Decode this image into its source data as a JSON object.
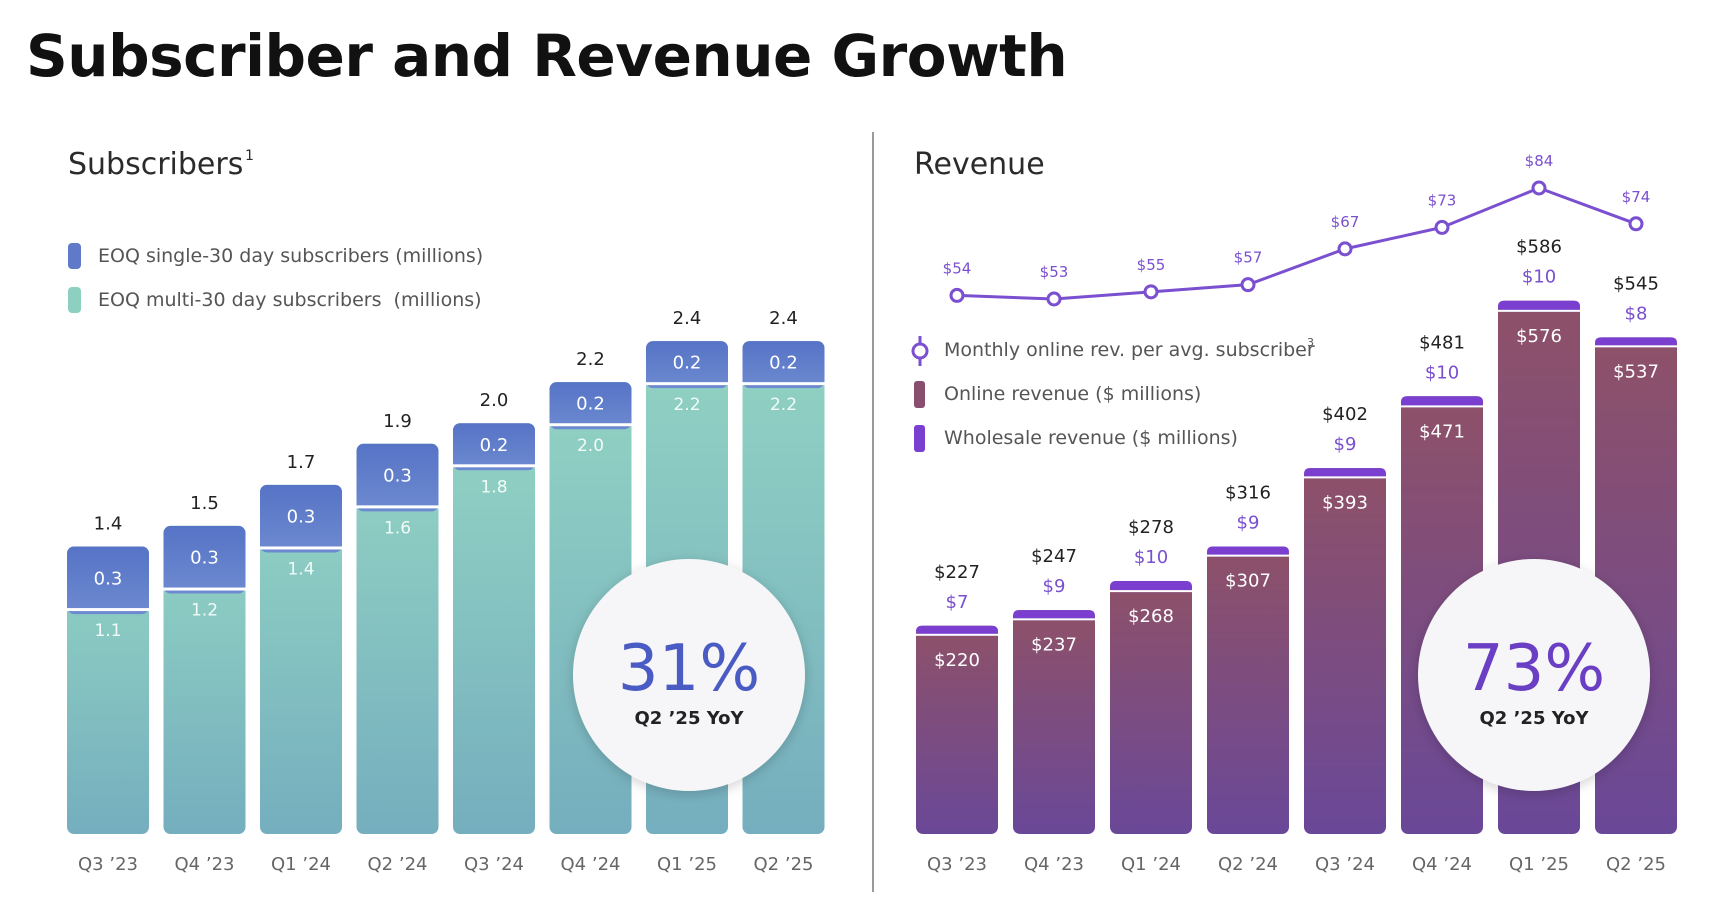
{
  "title": "Subscriber and Revenue Growth",
  "chart_data": [
    {
      "type": "bar",
      "stacked": true,
      "title": "Subscribers",
      "title_superscript": "1",
      "categories": [
        "Q3 ’23",
        "Q4 ’23",
        "Q1 ’24",
        "Q2 ’24",
        "Q3 ’24",
        "Q4 ’24",
        "Q1 ’25",
        "Q2 ’25"
      ],
      "series": [
        {
          "name": "EOQ multi-30 day subscribers  (millions)",
          "values": [
            1.1,
            1.2,
            1.4,
            1.6,
            1.8,
            2.0,
            2.2,
            2.2
          ],
          "color": "#8dcfc0"
        },
        {
          "name": "EOQ single-30 day subscribers (millions)",
          "values": [
            0.3,
            0.3,
            0.3,
            0.3,
            0.2,
            0.2,
            0.2,
            0.2
          ],
          "color": "#5f7ac8"
        }
      ],
      "totals": [
        1.4,
        1.5,
        1.7,
        1.9,
        2.0,
        2.2,
        2.4,
        2.4
      ],
      "ylim": [
        0,
        2.6
      ],
      "callout": {
        "value": "31%",
        "label": "Q2 ’25 YoY"
      },
      "accent_color": "#4a5cc4"
    },
    {
      "type": "bar",
      "stacked": true,
      "title": "Revenue",
      "categories": [
        "Q3 ’23",
        "Q4 ’23",
        "Q1 ’24",
        "Q2 ’24",
        "Q3 ’24",
        "Q4 ’24",
        "Q1 ’25",
        "Q2 ’25"
      ],
      "series": [
        {
          "name": "Online revenue ($ millions)",
          "values": [
            220,
            237,
            268,
            307,
            393,
            471,
            576,
            537
          ],
          "labels": [
            "$220",
            "$237",
            "$268",
            "$307",
            "$393",
            "$471",
            "$576",
            "$537"
          ],
          "color": "#8a4f6e"
        },
        {
          "name": "Wholesale revenue ($ millions)",
          "values": [
            7,
            9,
            10,
            9,
            9,
            10,
            10,
            8
          ],
          "labels": [
            "$7",
            "$9",
            "$10",
            "$9",
            "$9",
            "$10",
            "$10",
            "$8"
          ],
          "color": "#7a3fcf"
        }
      ],
      "totals": [
        "$227",
        "$247",
        "$278",
        "$316",
        "$402",
        "$481",
        "$586",
        "$545"
      ],
      "total_values": [
        227,
        247,
        278,
        316,
        402,
        481,
        586,
        545
      ],
      "line": {
        "name": "Monthly online rev. per avg. subscriber",
        "name_superscript": "3",
        "values": [
          54,
          53,
          55,
          57,
          67,
          73,
          84,
          74
        ],
        "labels": [
          "$54",
          "$53",
          "$55",
          "$57",
          "$67",
          "$73",
          "$84",
          "$74"
        ],
        "color": "#7a4fd0"
      },
      "ylim": [
        0,
        640
      ],
      "callout": {
        "value": "73%",
        "label": "Q2 ’25 YoY"
      },
      "accent_color": "#6a3fc4"
    }
  ]
}
